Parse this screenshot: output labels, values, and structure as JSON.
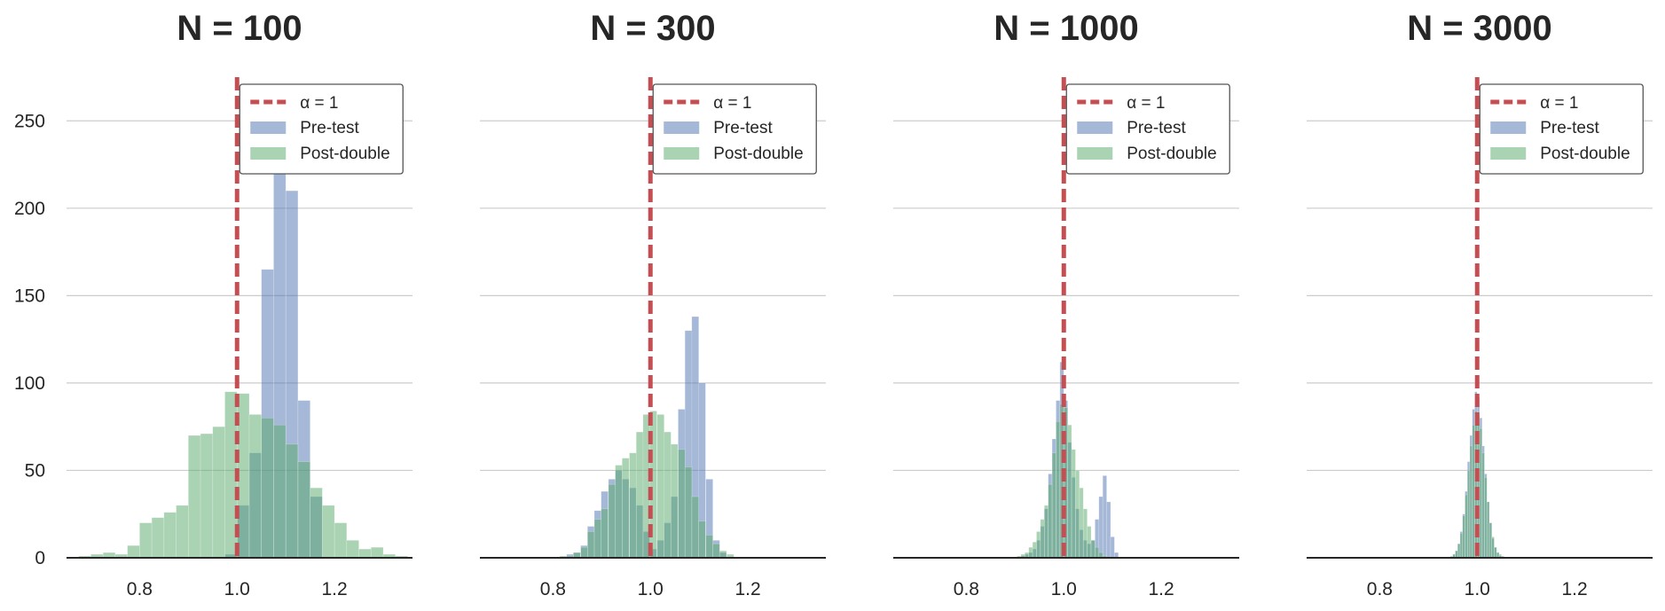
{
  "chart_data": [
    {
      "type": "bar",
      "title": "N = 100",
      "xlim": [
        0.65,
        1.36
      ],
      "ylim": [
        0,
        275
      ],
      "xticks": [
        "0.8",
        "1.0",
        "1.2"
      ],
      "yticks": [
        "0",
        "50",
        "100",
        "150",
        "200",
        "250"
      ],
      "show_yticks": true,
      "grid": "horizontal",
      "legend_position": "top-right",
      "legend": [
        "α = 1",
        "Pre-test",
        "Post-double"
      ],
      "reference_line": {
        "x": 1.0,
        "label": "α = 1",
        "color": "#c44e52"
      },
      "bin_width": 0.025,
      "series": [
        {
          "name": "Pre-test",
          "color": "#4c72b0",
          "bin_centers": [
            0.9875,
            1.0125,
            1.0375,
            1.0625,
            1.0875,
            1.1125,
            1.1375,
            1.1625
          ],
          "values": [
            2,
            30,
            60,
            165,
            260,
            210,
            90,
            35
          ]
        },
        {
          "name": "Post-double",
          "color": "#55a868",
          "bin_centers": [
            0.6875,
            0.7125,
            0.7375,
            0.7625,
            0.7875,
            0.8125,
            0.8375,
            0.8625,
            0.8875,
            0.9125,
            0.9375,
            0.9625,
            0.9875,
            1.0125,
            1.0375,
            1.0625,
            1.0875,
            1.1125,
            1.1375,
            1.1625,
            1.1875,
            1.2125,
            1.2375,
            1.2625,
            1.2875,
            1.3125,
            1.3375
          ],
          "values": [
            1,
            2,
            3,
            2,
            7,
            20,
            23,
            26,
            30,
            70,
            71,
            75,
            95,
            94,
            82,
            80,
            76,
            65,
            55,
            40,
            30,
            20,
            10,
            5,
            6,
            2,
            1
          ]
        }
      ]
    },
    {
      "type": "bar",
      "title": "N = 300",
      "xlim": [
        0.65,
        1.36
      ],
      "ylim": [
        0,
        275
      ],
      "xticks": [
        "0.8",
        "1.0",
        "1.2"
      ],
      "yticks": [
        "0",
        "50",
        "100",
        "150",
        "200",
        "250"
      ],
      "show_yticks": false,
      "grid": "horizontal",
      "legend_position": "top-right",
      "legend": [
        "α = 1",
        "Pre-test",
        "Post-double"
      ],
      "reference_line": {
        "x": 1.0,
        "label": "α = 1",
        "color": "#c44e52"
      },
      "bin_width": 0.0143,
      "series": [
        {
          "name": "Pre-test",
          "color": "#4c72b0",
          "bin_centers": [
            0.835,
            0.849,
            0.864,
            0.878,
            0.892,
            0.906,
            0.921,
            0.935,
            0.949,
            0.964,
            0.978,
            0.992,
            1.006,
            1.021,
            1.035,
            1.049,
            1.064,
            1.078,
            1.092,
            1.106,
            1.121,
            1.135,
            1.149
          ],
          "values": [
            2,
            3,
            7,
            18,
            27,
            38,
            45,
            50,
            45,
            40,
            30,
            15,
            5,
            10,
            20,
            35,
            85,
            130,
            138,
            100,
            45,
            10,
            3
          ]
        },
        {
          "name": "Post-double",
          "color": "#55a868",
          "bin_centers": [
            0.821,
            0.835,
            0.849,
            0.864,
            0.878,
            0.892,
            0.906,
            0.921,
            0.935,
            0.949,
            0.964,
            0.978,
            0.992,
            1.006,
            1.021,
            1.035,
            1.049,
            1.064,
            1.078,
            1.092,
            1.106,
            1.121,
            1.135,
            1.149,
            1.164
          ],
          "values": [
            1,
            1,
            3,
            6,
            15,
            22,
            28,
            42,
            53,
            57,
            60,
            72,
            82,
            84,
            82,
            72,
            65,
            62,
            52,
            35,
            21,
            13,
            8,
            4,
            2
          ]
        }
      ]
    },
    {
      "type": "bar",
      "title": "N = 1000",
      "xlim": [
        0.65,
        1.36
      ],
      "ylim": [
        0,
        275
      ],
      "xticks": [
        "0.8",
        "1.0",
        "1.2"
      ],
      "yticks": [
        "0",
        "50",
        "100",
        "150",
        "200",
        "250"
      ],
      "show_yticks": false,
      "grid": "horizontal",
      "legend_position": "top-right",
      "legend": [
        "α = 1",
        "Pre-test",
        "Post-double"
      ],
      "reference_line": {
        "x": 1.0,
        "label": "α = 1",
        "color": "#c44e52"
      },
      "bin_width": 0.008,
      "series": [
        {
          "name": "Pre-test",
          "color": "#4c72b0",
          "bin_centers": [
            0.916,
            0.924,
            0.932,
            0.94,
            0.948,
            0.956,
            0.964,
            0.972,
            0.98,
            0.988,
            0.996,
            1.004,
            1.012,
            1.02,
            1.028,
            1.036,
            1.044,
            1.052,
            1.06,
            1.068,
            1.076,
            1.084,
            1.092,
            1.1,
            1.108
          ],
          "values": [
            1,
            2,
            3,
            5,
            10,
            18,
            28,
            48,
            68,
            90,
            112,
            90,
            66,
            46,
            28,
            16,
            10,
            8,
            10,
            22,
            35,
            47,
            32,
            12,
            3
          ]
        },
        {
          "name": "Post-double",
          "color": "#55a868",
          "bin_centers": [
            0.908,
            0.916,
            0.924,
            0.932,
            0.94,
            0.948,
            0.956,
            0.964,
            0.972,
            0.98,
            0.988,
            0.996,
            1.004,
            1.012,
            1.02,
            1.028,
            1.036,
            1.044,
            1.052,
            1.06,
            1.068,
            1.076,
            1.084
          ],
          "values": [
            1,
            2,
            3,
            6,
            9,
            15,
            22,
            30,
            42,
            60,
            78,
            88,
            86,
            76,
            62,
            50,
            40,
            28,
            18,
            10,
            6,
            3,
            1
          ]
        }
      ]
    },
    {
      "type": "bar",
      "title": "N = 3000",
      "xlim": [
        0.65,
        1.36
      ],
      "ylim": [
        0,
        275
      ],
      "xticks": [
        "0.8",
        "1.0",
        "1.2"
      ],
      "yticks": [
        "0",
        "50",
        "100",
        "150",
        "200",
        "250"
      ],
      "show_yticks": false,
      "grid": "horizontal",
      "legend_position": "top-right",
      "legend": [
        "α = 1",
        "Pre-test",
        "Post-double"
      ],
      "reference_line": {
        "x": 1.0,
        "label": "α = 1",
        "color": "#c44e52"
      },
      "bin_width": 0.005,
      "series": [
        {
          "name": "Pre-test",
          "color": "#4c72b0",
          "bin_centers": [
            0.9525,
            0.9575,
            0.9625,
            0.9675,
            0.9725,
            0.9775,
            0.9825,
            0.9875,
            0.9925,
            0.9975,
            1.0025,
            1.0075,
            1.0125,
            1.0175,
            1.0225,
            1.0275,
            1.0325,
            1.0375,
            1.0425,
            1.0475
          ],
          "values": [
            2,
            4,
            8,
            15,
            25,
            38,
            55,
            70,
            85,
            95,
            92,
            80,
            64,
            48,
            32,
            20,
            11,
            6,
            3,
            1
          ]
        },
        {
          "name": "Post-double",
          "color": "#55a868",
          "bin_centers": [
            0.9475,
            0.9525,
            0.9575,
            0.9625,
            0.9675,
            0.9725,
            0.9775,
            0.9825,
            0.9875,
            0.9925,
            0.9975,
            1.0025,
            1.0075,
            1.0125,
            1.0175,
            1.0225,
            1.0275,
            1.0325,
            1.0375,
            1.0425,
            1.0475,
            1.0525
          ],
          "values": [
            1,
            2,
            4,
            8,
            14,
            24,
            36,
            50,
            64,
            76,
            84,
            82,
            74,
            60,
            46,
            32,
            20,
            12,
            6,
            3,
            2,
            1
          ]
        }
      ]
    }
  ]
}
